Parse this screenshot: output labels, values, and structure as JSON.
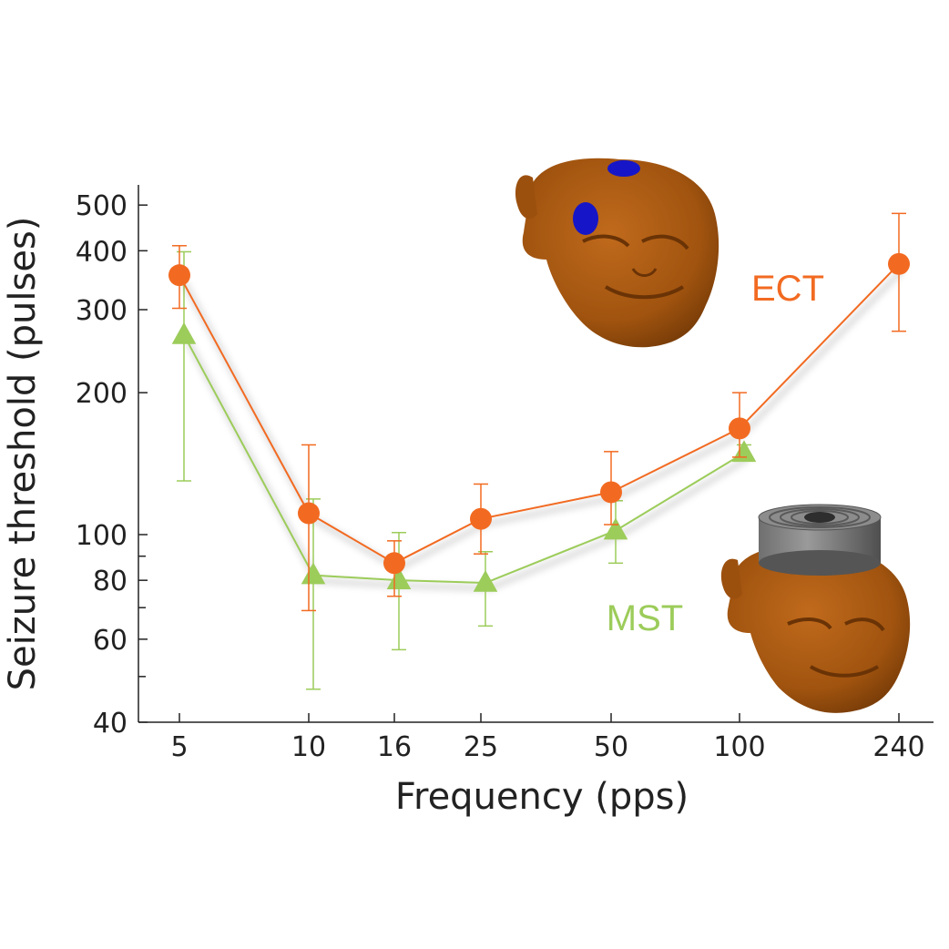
{
  "chart_data": {
    "type": "line",
    "xlabel": "Frequency (pps)",
    "ylabel": "Seizure threshold (pulses)",
    "x_scale": "log",
    "y_scale": "log",
    "x_ticks": [
      5,
      10,
      16,
      25,
      50,
      100,
      240
    ],
    "y_ticks": [
      40,
      60,
      80,
      100,
      200,
      300,
      400,
      500
    ],
    "y_minor_ticks": [
      50,
      70,
      90
    ],
    "xlim": [
      4,
      300
    ],
    "ylim": [
      40,
      570
    ],
    "grid": false,
    "series": [
      {
        "name": "ECT",
        "color": "#f26a21",
        "marker": "circle",
        "x": [
          5,
          10,
          16,
          25,
          50,
          100,
          240
        ],
        "y": [
          355,
          111,
          87,
          108,
          123,
          168,
          375
        ],
        "err_low": [
          302,
          69,
          74,
          91,
          105,
          146,
          270
        ],
        "err_high": [
          410,
          155,
          97,
          128,
          150,
          200,
          480
        ]
      },
      {
        "name": "MST",
        "color": "#9ccc5a",
        "marker": "triangle",
        "x": [
          5,
          10,
          16,
          25,
          50,
          100
        ],
        "y": [
          265,
          82,
          80,
          79,
          102,
          149
        ],
        "err_low": [
          130,
          47,
          57,
          64,
          87,
          144
        ],
        "err_high": [
          398,
          119,
          101,
          92,
          118,
          155
        ]
      }
    ]
  },
  "illustrations": {
    "ect_head": "monkey-head with two blue electrodes",
    "mst_head": "monkey-head with magnetic coil on top"
  }
}
